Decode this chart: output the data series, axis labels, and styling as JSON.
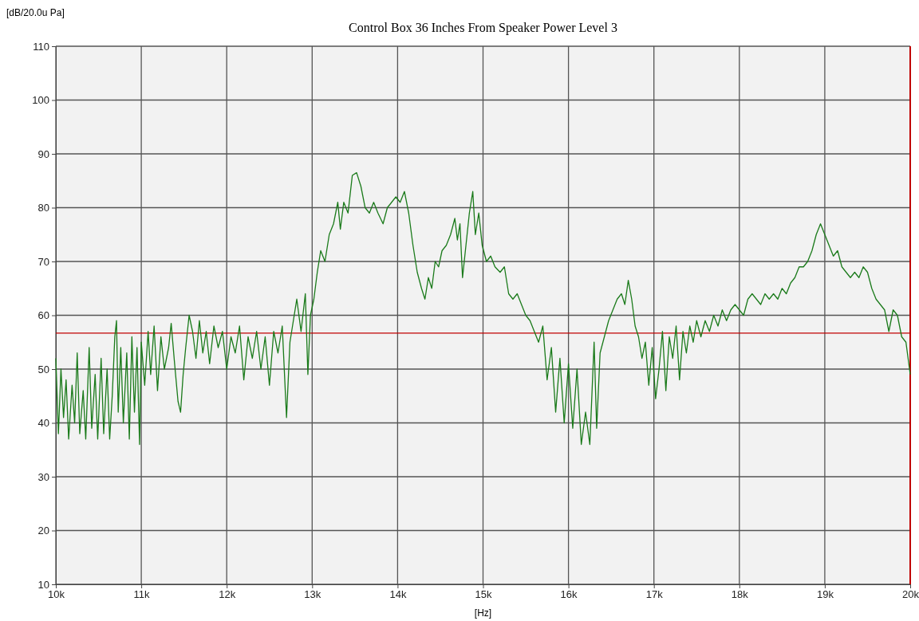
{
  "chart_data": {
    "type": "line",
    "title": "Control Box 36 Inches From Speaker Power Level 3",
    "xlabel": "[Hz]",
    "ylabel": "[dB/20.0u Pa]",
    "xlim": [
      10000,
      20000
    ],
    "ylim": [
      10,
      110
    ],
    "xticks": [
      {
        "value": 10000,
        "label": "10k"
      },
      {
        "value": 11000,
        "label": "11k"
      },
      {
        "value": 12000,
        "label": "12k"
      },
      {
        "value": 13000,
        "label": "13k"
      },
      {
        "value": 14000,
        "label": "14k"
      },
      {
        "value": 15000,
        "label": "15k"
      },
      {
        "value": 16000,
        "label": "16k"
      },
      {
        "value": 17000,
        "label": "17k"
      },
      {
        "value": 18000,
        "label": "18k"
      },
      {
        "value": 19000,
        "label": "19k"
      },
      {
        "value": 20000,
        "label": "20k"
      }
    ],
    "yticks": [
      10,
      20,
      30,
      40,
      50,
      60,
      70,
      80,
      90,
      100,
      110
    ],
    "grid": true,
    "marker": "none",
    "line_style": "solid",
    "ref_lines": [
      {
        "axis": "y",
        "value": 56.7,
        "color": "#c00000"
      },
      {
        "axis": "x",
        "value": 20000,
        "color": "#c00000"
      }
    ],
    "x": [
      10000,
      10030,
      10060,
      10090,
      10120,
      10150,
      10190,
      10220,
      10250,
      10280,
      10320,
      10350,
      10390,
      10420,
      10460,
      10490,
      10530,
      10560,
      10600,
      10630,
      10660,
      10690,
      10710,
      10730,
      10760,
      10790,
      10830,
      10860,
      10890,
      10920,
      10950,
      10980,
      11000,
      11040,
      11080,
      11110,
      11150,
      11190,
      11230,
      11270,
      11320,
      11350,
      11390,
      11430,
      11460,
      11490,
      11520,
      11560,
      11600,
      11640,
      11680,
      11720,
      11760,
      11800,
      11850,
      11900,
      11950,
      12000,
      12050,
      12100,
      12150,
      12200,
      12250,
      12300,
      12350,
      12400,
      12450,
      12500,
      12550,
      12600,
      12650,
      12700,
      12740,
      12780,
      12820,
      12870,
      12920,
      12950,
      12980,
      13020,
      13060,
      13100,
      13150,
      13200,
      13250,
      13300,
      13330,
      13370,
      13420,
      13470,
      13520,
      13570,
      13620,
      13670,
      13720,
      13770,
      13830,
      13880,
      13930,
      13980,
      14030,
      14080,
      14130,
      14180,
      14230,
      14280,
      14320,
      14360,
      14400,
      14440,
      14480,
      14520,
      14570,
      14620,
      14670,
      14700,
      14730,
      14760,
      14800,
      14840,
      14880,
      14910,
      14950,
      14990,
      15040,
      15090,
      15140,
      15200,
      15250,
      15300,
      15350,
      15400,
      15450,
      15500,
      15550,
      15600,
      15650,
      15700,
      15750,
      15800,
      15850,
      15900,
      15950,
      16000,
      16050,
      16100,
      16150,
      16200,
      16250,
      16300,
      16330,
      16370,
      16420,
      16470,
      16520,
      16570,
      16620,
      16660,
      16700,
      16740,
      16780,
      16820,
      16860,
      16900,
      16940,
      16980,
      17020,
      17060,
      17100,
      17140,
      17180,
      17220,
      17260,
      17300,
      17340,
      17380,
      17420,
      17460,
      17500,
      17550,
      17600,
      17650,
      17700,
      17750,
      17800,
      17850,
      17900,
      17950,
      18000,
      18050,
      18100,
      18150,
      18200,
      18250,
      18300,
      18350,
      18400,
      18450,
      18500,
      18550,
      18600,
      18650,
      18700,
      18750,
      18800,
      18850,
      18900,
      18950,
      19000,
      19050,
      19100,
      19150,
      19200,
      19250,
      19300,
      19350,
      19400,
      19450,
      19500,
      19550,
      19600,
      19650,
      19700,
      19750,
      19800,
      19850,
      19900,
      19950,
      20000
    ],
    "series": [
      {
        "color": "#1a7a1a",
        "values": [
          52,
          38,
          50,
          41,
          48,
          37,
          47,
          40,
          53,
          38,
          46,
          37,
          54,
          39,
          49,
          37,
          52,
          38,
          50,
          37,
          45,
          56,
          59,
          42,
          54,
          40,
          53,
          37,
          56,
          42,
          54,
          36,
          55,
          47,
          57,
          49,
          58,
          46,
          56,
          50,
          54,
          58.5,
          51,
          44,
          42,
          49,
          54,
          60,
          57,
          52,
          59,
          53,
          57,
          51,
          58,
          54,
          57,
          50,
          56,
          53,
          58,
          48,
          56,
          52,
          57,
          50,
          56,
          47,
          57,
          53,
          58,
          41,
          55,
          59,
          63,
          57,
          64,
          49,
          60,
          63,
          68,
          72,
          70,
          75,
          77,
          81,
          76,
          81,
          79,
          86,
          86.5,
          84,
          80,
          79,
          81,
          79,
          77,
          80,
          81,
          82,
          81,
          83,
          79,
          73,
          68,
          65,
          63,
          67,
          65,
          70,
          69,
          72,
          73,
          75,
          78,
          74,
          77,
          67,
          73,
          79,
          83,
          75,
          79,
          73,
          70,
          71,
          69,
          68,
          69,
          64,
          63,
          64,
          62,
          60,
          59,
          57,
          55,
          58,
          48,
          54,
          42,
          52,
          40,
          51,
          39,
          50,
          36,
          42,
          36,
          55,
          39,
          53,
          56,
          59,
          61,
          63,
          64,
          62,
          66.5,
          63,
          58,
          56,
          52,
          55,
          47,
          54,
          44.5,
          50,
          57,
          46,
          56,
          52,
          58,
          48,
          57,
          53,
          58,
          55,
          59,
          56,
          59,
          57,
          60,
          58,
          61,
          59,
          61,
          62,
          61,
          60,
          63,
          64,
          63,
          62,
          64,
          63,
          64,
          63,
          65,
          64,
          66,
          67,
          69,
          69,
          70,
          72,
          75,
          77,
          75,
          73,
          71,
          72,
          69,
          68,
          67,
          68,
          67,
          69,
          68,
          65,
          63,
          62,
          61,
          57,
          61,
          60,
          56,
          55,
          49
        ]
      }
    ]
  }
}
